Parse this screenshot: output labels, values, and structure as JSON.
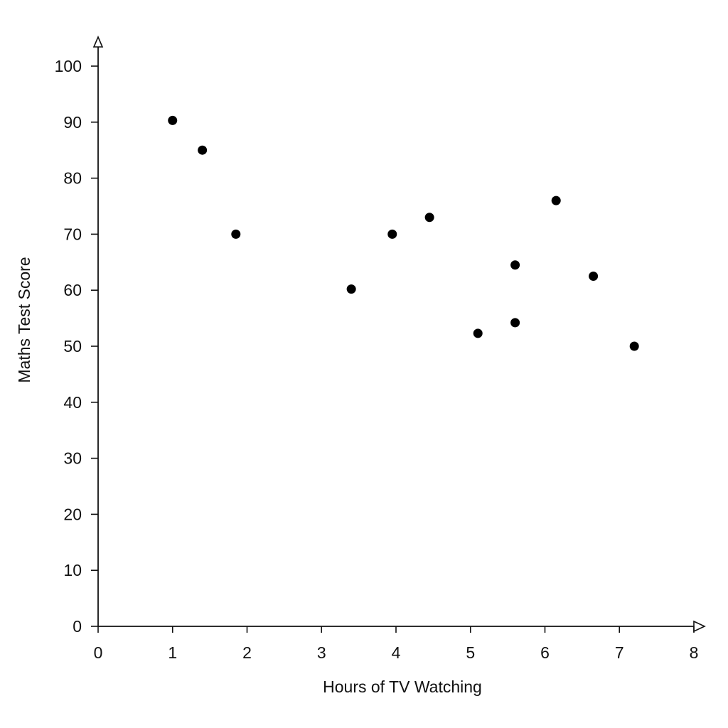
{
  "chart_data": {
    "type": "scatter",
    "title": "",
    "xlabel": "Hours of TV Watching",
    "ylabel": "Maths Test Score",
    "xlim": [
      0,
      8
    ],
    "ylim": [
      0,
      100
    ],
    "x_ticks": [
      0,
      1,
      2,
      3,
      4,
      5,
      6,
      7,
      8
    ],
    "y_ticks": [
      0,
      10,
      20,
      30,
      40,
      50,
      60,
      70,
      80,
      90,
      100
    ],
    "grid": false,
    "legend": "none",
    "point_color": "#000000",
    "axis_color": "#111111",
    "series": [
      {
        "x": [
          1.0,
          1.4,
          1.85,
          3.4,
          3.95,
          4.45,
          5.1,
          5.6,
          5.6,
          6.15,
          6.65,
          7.2
        ],
        "y": [
          90.3,
          85,
          70,
          60.2,
          70,
          73,
          52.3,
          64.5,
          54.2,
          76,
          62.5,
          50
        ]
      }
    ]
  }
}
